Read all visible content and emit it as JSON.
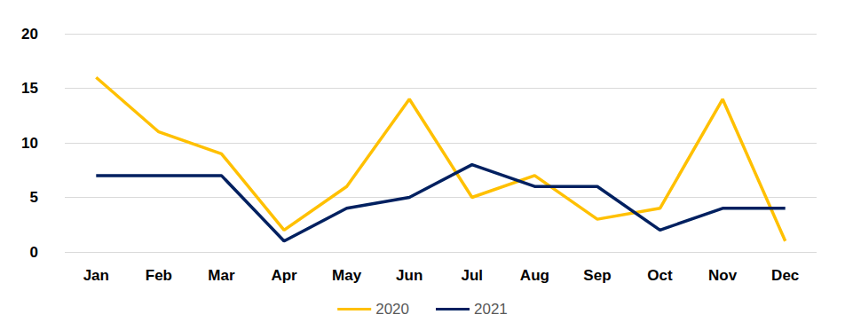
{
  "chart_data": {
    "type": "line",
    "categories": [
      "Jan",
      "Feb",
      "Mar",
      "Apr",
      "May",
      "Jun",
      "Jul",
      "Aug",
      "Sep",
      "Oct",
      "Nov",
      "Dec"
    ],
    "series": [
      {
        "name": "2020",
        "color": "#FFC000",
        "values": [
          16,
          11,
          9,
          2,
          6,
          14,
          5,
          7,
          3,
          4,
          14,
          1
        ]
      },
      {
        "name": "2021",
        "color": "#002060",
        "values": [
          7,
          7,
          7,
          1,
          4,
          5,
          8,
          6,
          6,
          2,
          4,
          4
        ]
      }
    ],
    "ylim": [
      0,
      20
    ],
    "yticks": [
      0,
      5,
      10,
      15,
      20
    ],
    "grid": true,
    "legend": "bottom"
  }
}
